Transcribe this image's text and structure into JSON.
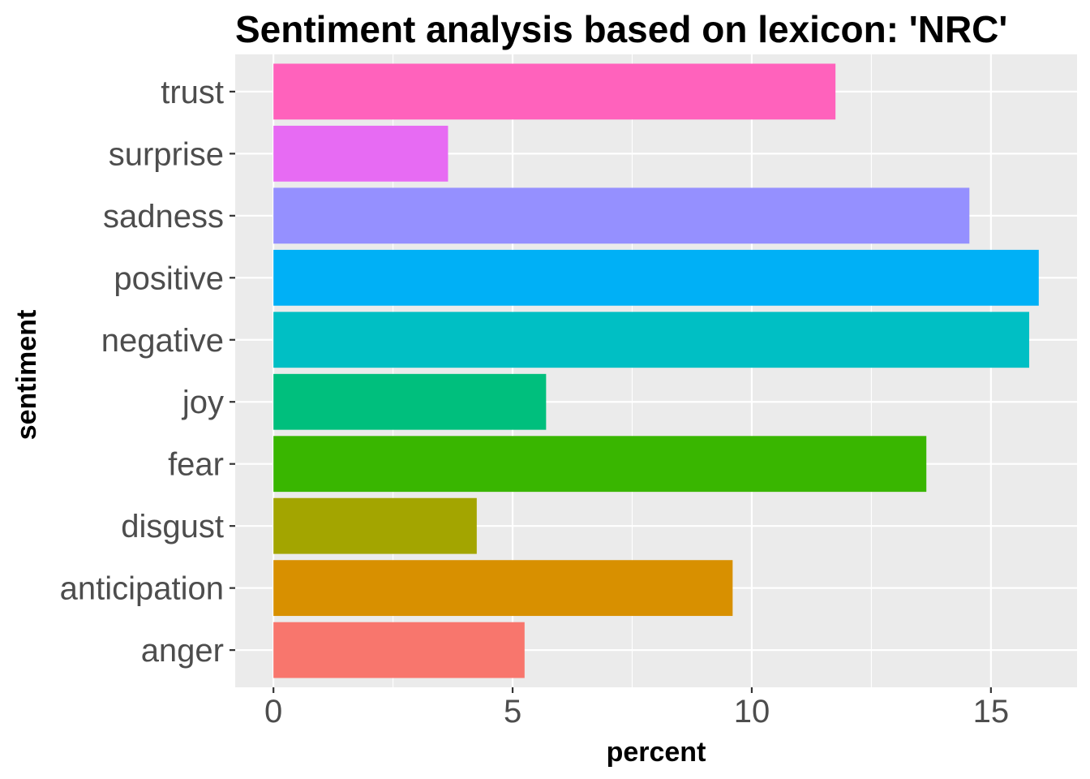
{
  "chart_data": {
    "type": "bar",
    "orientation": "horizontal",
    "title": "Sentiment analysis based on lexicon: 'NRC'",
    "xlabel": "percent",
    "ylabel": "sentiment",
    "xlim": [
      -0.8,
      16.8
    ],
    "x_ticks": [
      0,
      5,
      10,
      15
    ],
    "x_tick_labels": [
      "0",
      "5",
      "10",
      "15"
    ],
    "grid": true,
    "legend": "none",
    "categories": [
      "anger",
      "anticipation",
      "disgust",
      "fear",
      "joy",
      "negative",
      "positive",
      "sadness",
      "surprise",
      "trust"
    ],
    "values": [
      5.25,
      9.6,
      4.25,
      13.65,
      5.7,
      15.8,
      16.0,
      14.55,
      3.65,
      11.75
    ],
    "colors": [
      "#F8766D",
      "#D89000",
      "#A3A500",
      "#39B600",
      "#00BF7D",
      "#00BFC4",
      "#00B0F6",
      "#9590FF",
      "#E76BF3",
      "#FF62BC"
    ]
  }
}
